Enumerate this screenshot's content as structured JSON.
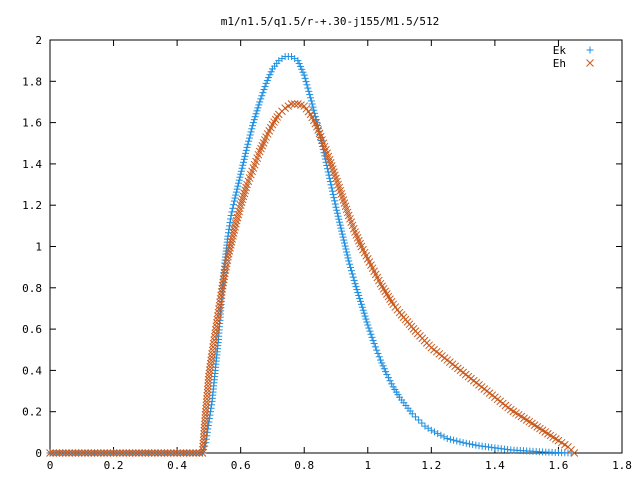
{
  "chart_data": {
    "type": "scatter",
    "title": "m1/n1.5/q1.5/r-+.30-j155/M1.5/512",
    "xlabel": "",
    "ylabel": "",
    "xlim": [
      0,
      1.8
    ],
    "ylim": [
      0,
      2
    ],
    "xticks": [
      "0",
      "0.2",
      "0.4",
      "0.6",
      "0.8",
      "1",
      "1.2",
      "1.4",
      "1.6",
      "1.8"
    ],
    "yticks": [
      "0",
      "0.2",
      "0.4",
      "0.6",
      "0.8",
      "1",
      "1.2",
      "1.4",
      "1.6",
      "1.8",
      "2"
    ],
    "grid": false,
    "legend_position": "top-right",
    "series": [
      {
        "name": "Ek",
        "marker": "plus",
        "color": "#1e8fe0",
        "x": [
          0.0,
          0.1,
          0.2,
          0.3,
          0.4,
          0.48,
          0.49,
          0.5,
          0.51,
          0.52,
          0.53,
          0.54,
          0.55,
          0.56,
          0.57,
          0.58,
          0.6,
          0.62,
          0.64,
          0.66,
          0.68,
          0.7,
          0.72,
          0.74,
          0.76,
          0.78,
          0.8,
          0.82,
          0.84,
          0.86,
          0.88,
          0.9,
          0.92,
          0.94,
          0.96,
          0.98,
          1.0,
          1.02,
          1.04,
          1.06,
          1.08,
          1.1,
          1.12,
          1.14,
          1.16,
          1.18,
          1.2,
          1.25,
          1.3,
          1.35,
          1.4,
          1.45,
          1.5,
          1.55,
          1.6,
          1.64
        ],
        "y": [
          0.0,
          0.0,
          0.0,
          0.0,
          0.0,
          0.0,
          0.05,
          0.15,
          0.25,
          0.4,
          0.55,
          0.75,
          0.92,
          1.05,
          1.15,
          1.22,
          1.35,
          1.48,
          1.6,
          1.7,
          1.79,
          1.86,
          1.9,
          1.92,
          1.92,
          1.9,
          1.83,
          1.72,
          1.6,
          1.47,
          1.33,
          1.19,
          1.06,
          0.93,
          0.82,
          0.72,
          0.62,
          0.53,
          0.45,
          0.38,
          0.32,
          0.27,
          0.23,
          0.19,
          0.16,
          0.13,
          0.11,
          0.07,
          0.05,
          0.035,
          0.025,
          0.015,
          0.01,
          0.005,
          0.002,
          0.0
        ]
      },
      {
        "name": "Eh",
        "marker": "cross",
        "color": "#c85a1e",
        "x": [
          0.0,
          0.1,
          0.2,
          0.3,
          0.4,
          0.48,
          0.49,
          0.5,
          0.51,
          0.52,
          0.53,
          0.54,
          0.55,
          0.56,
          0.58,
          0.6,
          0.62,
          0.64,
          0.66,
          0.68,
          0.7,
          0.72,
          0.74,
          0.76,
          0.78,
          0.8,
          0.82,
          0.84,
          0.86,
          0.88,
          0.9,
          0.92,
          0.94,
          0.96,
          0.98,
          1.0,
          1.02,
          1.04,
          1.06,
          1.08,
          1.1,
          1.15,
          1.2,
          1.25,
          1.3,
          1.35,
          1.4,
          1.45,
          1.5,
          1.55,
          1.6,
          1.63,
          1.65
        ],
        "y": [
          0.0,
          0.0,
          0.0,
          0.0,
          0.0,
          0.0,
          0.2,
          0.37,
          0.48,
          0.58,
          0.68,
          0.78,
          0.87,
          0.95,
          1.08,
          1.2,
          1.3,
          1.38,
          1.46,
          1.53,
          1.59,
          1.64,
          1.67,
          1.69,
          1.69,
          1.68,
          1.64,
          1.58,
          1.5,
          1.42,
          1.33,
          1.24,
          1.15,
          1.07,
          1.0,
          0.94,
          0.88,
          0.82,
          0.77,
          0.72,
          0.68,
          0.59,
          0.51,
          0.45,
          0.39,
          0.33,
          0.27,
          0.21,
          0.16,
          0.11,
          0.06,
          0.03,
          0.0
        ]
      }
    ]
  }
}
